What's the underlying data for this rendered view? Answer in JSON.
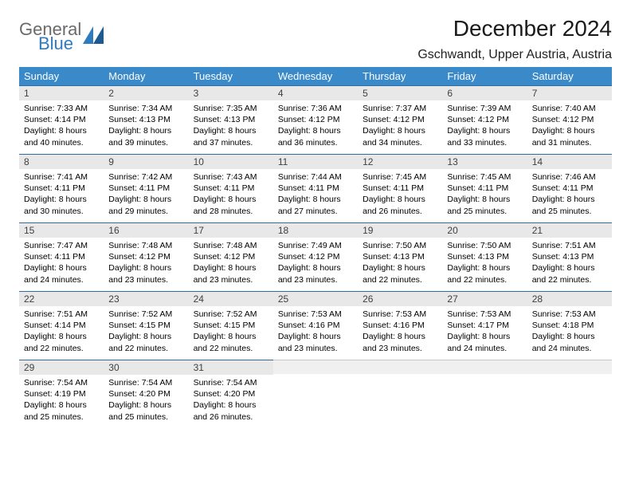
{
  "brand": {
    "line1": "General",
    "line2": "Blue"
  },
  "title": "December 2024",
  "location": "Gschwandt, Upper Austria, Austria",
  "colors": {
    "header_bg": "#3a89c9",
    "header_fg": "#ffffff",
    "daynum_bg": "#e8e8e8",
    "daynum_border": "#2f6da3",
    "logo_gray": "#6a6a6a",
    "logo_blue": "#2f7bbf"
  },
  "weekday_labels": [
    "Sunday",
    "Monday",
    "Tuesday",
    "Wednesday",
    "Thursday",
    "Friday",
    "Saturday"
  ],
  "weeks": [
    [
      {
        "n": "1",
        "sr": "Sunrise: 7:33 AM",
        "ss": "Sunset: 4:14 PM",
        "dl": "Daylight: 8 hours and 40 minutes."
      },
      {
        "n": "2",
        "sr": "Sunrise: 7:34 AM",
        "ss": "Sunset: 4:13 PM",
        "dl": "Daylight: 8 hours and 39 minutes."
      },
      {
        "n": "3",
        "sr": "Sunrise: 7:35 AM",
        "ss": "Sunset: 4:13 PM",
        "dl": "Daylight: 8 hours and 37 minutes."
      },
      {
        "n": "4",
        "sr": "Sunrise: 7:36 AM",
        "ss": "Sunset: 4:12 PM",
        "dl": "Daylight: 8 hours and 36 minutes."
      },
      {
        "n": "5",
        "sr": "Sunrise: 7:37 AM",
        "ss": "Sunset: 4:12 PM",
        "dl": "Daylight: 8 hours and 34 minutes."
      },
      {
        "n": "6",
        "sr": "Sunrise: 7:39 AM",
        "ss": "Sunset: 4:12 PM",
        "dl": "Daylight: 8 hours and 33 minutes."
      },
      {
        "n": "7",
        "sr": "Sunrise: 7:40 AM",
        "ss": "Sunset: 4:12 PM",
        "dl": "Daylight: 8 hours and 31 minutes."
      }
    ],
    [
      {
        "n": "8",
        "sr": "Sunrise: 7:41 AM",
        "ss": "Sunset: 4:11 PM",
        "dl": "Daylight: 8 hours and 30 minutes."
      },
      {
        "n": "9",
        "sr": "Sunrise: 7:42 AM",
        "ss": "Sunset: 4:11 PM",
        "dl": "Daylight: 8 hours and 29 minutes."
      },
      {
        "n": "10",
        "sr": "Sunrise: 7:43 AM",
        "ss": "Sunset: 4:11 PM",
        "dl": "Daylight: 8 hours and 28 minutes."
      },
      {
        "n": "11",
        "sr": "Sunrise: 7:44 AM",
        "ss": "Sunset: 4:11 PM",
        "dl": "Daylight: 8 hours and 27 minutes."
      },
      {
        "n": "12",
        "sr": "Sunrise: 7:45 AM",
        "ss": "Sunset: 4:11 PM",
        "dl": "Daylight: 8 hours and 26 minutes."
      },
      {
        "n": "13",
        "sr": "Sunrise: 7:45 AM",
        "ss": "Sunset: 4:11 PM",
        "dl": "Daylight: 8 hours and 25 minutes."
      },
      {
        "n": "14",
        "sr": "Sunrise: 7:46 AM",
        "ss": "Sunset: 4:11 PM",
        "dl": "Daylight: 8 hours and 25 minutes."
      }
    ],
    [
      {
        "n": "15",
        "sr": "Sunrise: 7:47 AM",
        "ss": "Sunset: 4:11 PM",
        "dl": "Daylight: 8 hours and 24 minutes."
      },
      {
        "n": "16",
        "sr": "Sunrise: 7:48 AM",
        "ss": "Sunset: 4:12 PM",
        "dl": "Daylight: 8 hours and 23 minutes."
      },
      {
        "n": "17",
        "sr": "Sunrise: 7:48 AM",
        "ss": "Sunset: 4:12 PM",
        "dl": "Daylight: 8 hours and 23 minutes."
      },
      {
        "n": "18",
        "sr": "Sunrise: 7:49 AM",
        "ss": "Sunset: 4:12 PM",
        "dl": "Daylight: 8 hours and 23 minutes."
      },
      {
        "n": "19",
        "sr": "Sunrise: 7:50 AM",
        "ss": "Sunset: 4:13 PM",
        "dl": "Daylight: 8 hours and 22 minutes."
      },
      {
        "n": "20",
        "sr": "Sunrise: 7:50 AM",
        "ss": "Sunset: 4:13 PM",
        "dl": "Daylight: 8 hours and 22 minutes."
      },
      {
        "n": "21",
        "sr": "Sunrise: 7:51 AM",
        "ss": "Sunset: 4:13 PM",
        "dl": "Daylight: 8 hours and 22 minutes."
      }
    ],
    [
      {
        "n": "22",
        "sr": "Sunrise: 7:51 AM",
        "ss": "Sunset: 4:14 PM",
        "dl": "Daylight: 8 hours and 22 minutes."
      },
      {
        "n": "23",
        "sr": "Sunrise: 7:52 AM",
        "ss": "Sunset: 4:15 PM",
        "dl": "Daylight: 8 hours and 22 minutes."
      },
      {
        "n": "24",
        "sr": "Sunrise: 7:52 AM",
        "ss": "Sunset: 4:15 PM",
        "dl": "Daylight: 8 hours and 22 minutes."
      },
      {
        "n": "25",
        "sr": "Sunrise: 7:53 AM",
        "ss": "Sunset: 4:16 PM",
        "dl": "Daylight: 8 hours and 23 minutes."
      },
      {
        "n": "26",
        "sr": "Sunrise: 7:53 AM",
        "ss": "Sunset: 4:16 PM",
        "dl": "Daylight: 8 hours and 23 minutes."
      },
      {
        "n": "27",
        "sr": "Sunrise: 7:53 AM",
        "ss": "Sunset: 4:17 PM",
        "dl": "Daylight: 8 hours and 24 minutes."
      },
      {
        "n": "28",
        "sr": "Sunrise: 7:53 AM",
        "ss": "Sunset: 4:18 PM",
        "dl": "Daylight: 8 hours and 24 minutes."
      }
    ],
    [
      {
        "n": "29",
        "sr": "Sunrise: 7:54 AM",
        "ss": "Sunset: 4:19 PM",
        "dl": "Daylight: 8 hours and 25 minutes."
      },
      {
        "n": "30",
        "sr": "Sunrise: 7:54 AM",
        "ss": "Sunset: 4:20 PM",
        "dl": "Daylight: 8 hours and 25 minutes."
      },
      {
        "n": "31",
        "sr": "Sunrise: 7:54 AM",
        "ss": "Sunset: 4:20 PM",
        "dl": "Daylight: 8 hours and 26 minutes."
      },
      null,
      null,
      null,
      null
    ]
  ]
}
